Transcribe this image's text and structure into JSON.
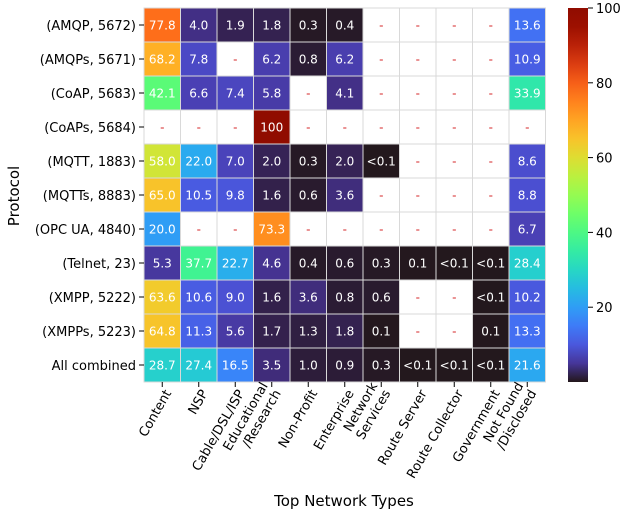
{
  "chart_data": {
    "type": "heatmap",
    "xlabel": "Top Network Types",
    "ylabel": "Protocol",
    "columns": [
      [
        "Content"
      ],
      [
        "NSP"
      ],
      [
        "Cable/DSL/ISP"
      ],
      [
        "Educational",
        "/Research"
      ],
      [
        "Non-Profit"
      ],
      [
        "Enterprise"
      ],
      [
        "Network",
        "Services"
      ],
      [
        "Route Server"
      ],
      [
        "Route Collector"
      ],
      [
        "Government"
      ],
      [
        "Not Found",
        "/Disclosed"
      ]
    ],
    "rows": [
      "(AMQP, 5672)",
      "(AMQPs, 5671)",
      "(CoAP, 5683)",
      "(CoAPs, 5684)",
      "(MQTT, 1883)",
      "(MQTTs, 8883)",
      "(OPC UA, 4840)",
      "(Telnet, 23)",
      "(XMPP, 5222)",
      "(XMPPs, 5223)",
      "All combined"
    ],
    "values": [
      [
        "77.8",
        "4.0",
        "1.9",
        "1.8",
        "0.3",
        "0.4",
        "-",
        "-",
        "-",
        "-",
        "13.6"
      ],
      [
        "68.2",
        "7.8",
        "-",
        "6.2",
        "0.8",
        "6.2",
        "-",
        "-",
        "-",
        "-",
        "10.9"
      ],
      [
        "42.1",
        "6.6",
        "7.4",
        "5.8",
        "-",
        "4.1",
        "-",
        "-",
        "-",
        "-",
        "33.9"
      ],
      [
        "-",
        "-",
        "-",
        "100",
        "-",
        "-",
        "-",
        "-",
        "-",
        "-",
        "-"
      ],
      [
        "58.0",
        "22.0",
        "7.0",
        "2.0",
        "0.3",
        "2.0",
        "<0.1",
        "-",
        "-",
        "-",
        "8.6"
      ],
      [
        "65.0",
        "10.5",
        "9.8",
        "1.6",
        "0.6",
        "3.6",
        "-",
        "-",
        "-",
        "-",
        "8.8"
      ],
      [
        "20.0",
        "-",
        "-",
        "73.3",
        "-",
        "-",
        "-",
        "-",
        "-",
        "-",
        "6.7"
      ],
      [
        "5.3",
        "37.7",
        "22.7",
        "4.6",
        "0.4",
        "0.6",
        "0.3",
        "0.1",
        "<0.1",
        "<0.1",
        "28.4"
      ],
      [
        "63.6",
        "10.6",
        "9.0",
        "1.6",
        "3.6",
        "0.8",
        "0.6",
        "-",
        "-",
        "<0.1",
        "10.2"
      ],
      [
        "64.8",
        "11.3",
        "5.6",
        "1.7",
        "1.3",
        "1.8",
        "0.1",
        "-",
        "-",
        "0.1",
        "13.3"
      ],
      [
        "28.7",
        "27.4",
        "16.5",
        "3.5",
        "1.0",
        "0.9",
        "0.3",
        "<0.1",
        "<0.1",
        "<0.1",
        "21.6"
      ]
    ],
    "colorbar": {
      "colormap": "turbo",
      "range": [
        0,
        100
      ],
      "ticks": [
        "20",
        "40",
        "60",
        "80",
        "100"
      ]
    },
    "missing_marker": "-",
    "missing_text_color": "#d62728",
    "grid_line_color": "#d9d9d9"
  }
}
